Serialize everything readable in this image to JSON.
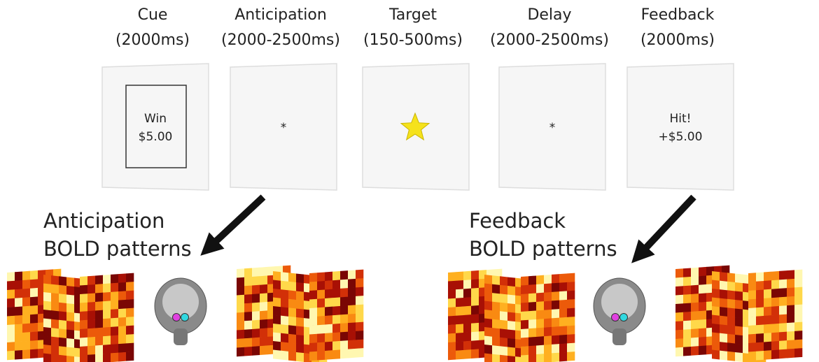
{
  "stages": [
    {
      "title": "Cue",
      "duration": "(2000ms)",
      "panel_text": [
        "Win",
        "$5.00"
      ],
      "frame": true
    },
    {
      "title": "Anticipation",
      "duration": "(2000-2500ms)",
      "panel_text": [
        "*"
      ]
    },
    {
      "title": "Target",
      "duration": "(150-500ms)",
      "star": true
    },
    {
      "title": "Delay",
      "duration": "(2000-2500ms)",
      "panel_text": [
        "*"
      ]
    },
    {
      "title": "Feedback",
      "duration": "(2000ms)",
      "panel_text": [
        "Hit!",
        "+$5.00"
      ]
    }
  ],
  "bold_labels": [
    {
      "line1": "Anticipation",
      "line2": "BOLD patterns"
    },
    {
      "line1": "Feedback",
      "line2": "BOLD patterns"
    }
  ]
}
